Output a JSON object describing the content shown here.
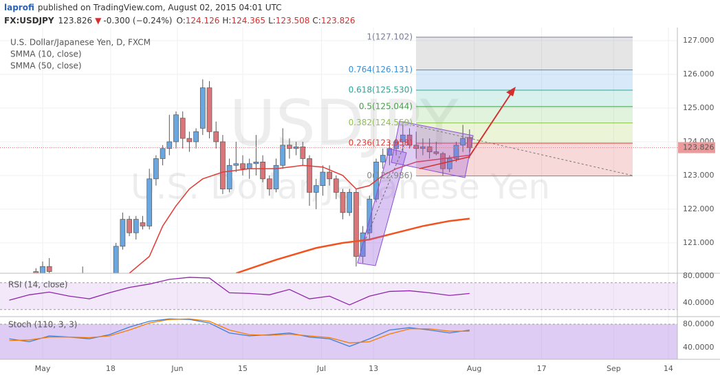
{
  "header": {
    "author": "laprofi",
    "published": "published on TradingView.com, August 02, 2015 04:01 UTC",
    "symbol": "FX:USDJPY",
    "price": "123.826",
    "arrow": "▼",
    "change": "-0.300 (−0.24%)",
    "ohlc": [
      {
        "label": "O:",
        "value": "124.126"
      },
      {
        "label": "H:",
        "value": "124.365"
      },
      {
        "label": "L:",
        "value": "123.508"
      },
      {
        "label": "C:",
        "value": "123.826"
      }
    ]
  },
  "chart_data": [
    {
      "type": "candlestick",
      "title": "U.S. Dollar/Japanese Yen, D, FXCM",
      "watermark": "USDJPY",
      "watermark_subtitle": "U.S. Dollar/Japanese Yen",
      "x": [
        4,
        5,
        6,
        11,
        16,
        17,
        18,
        19,
        20,
        21,
        22,
        23,
        24,
        25,
        26,
        27,
        28,
        29,
        30,
        31,
        32,
        33,
        34,
        35,
        36,
        37,
        38,
        39,
        40,
        41,
        42,
        43,
        44,
        45,
        46,
        47,
        48,
        49,
        50,
        51,
        52,
        53,
        54,
        55,
        56,
        57,
        58,
        59,
        60,
        61,
        62,
        63,
        64,
        65,
        66,
        67,
        68,
        69
      ],
      "open": [
        120.15,
        120.1,
        120.3,
        120.0,
        119.9,
        120.9,
        121.7,
        121.3,
        121.6,
        121.5,
        122.9,
        123.5,
        123.8,
        124.0,
        124.7,
        124.1,
        124.0,
        124.4,
        125.6,
        124.3,
        124.0,
        122.6,
        123.3,
        123.35,
        123.2,
        123.35,
        123.4,
        122.9,
        122.6,
        123.3,
        123.9,
        123.8,
        123.85,
        123.5,
        122.5,
        122.7,
        123.1,
        122.9,
        122.5,
        121.9,
        122.5,
        120.6,
        121.3,
        122.3,
        123.4,
        123.6,
        123.8,
        124.0,
        124.2,
        123.9,
        123.8,
        123.85,
        123.7,
        123.65,
        123.2,
        123.5,
        123.9,
        124.126
      ],
      "high": [
        120.25,
        120.45,
        120.55,
        120.3,
        121.0,
        121.9,
        121.8,
        121.8,
        121.8,
        123.2,
        123.6,
        123.9,
        124.8,
        124.9,
        124.9,
        124.3,
        124.4,
        125.85,
        125.8,
        124.6,
        124.2,
        123.5,
        124.0,
        123.6,
        123.5,
        124.2,
        123.6,
        123.0,
        123.5,
        124.4,
        124.1,
        124.0,
        124.0,
        123.6,
        122.9,
        123.3,
        123.3,
        123.0,
        122.6,
        122.6,
        122.6,
        121.5,
        122.4,
        123.5,
        123.8,
        124.0,
        124.1,
        124.5,
        124.4,
        124.3,
        124.1,
        124.1,
        124.0,
        123.7,
        123.6,
        124.0,
        124.5,
        124.365
      ],
      "low": [
        120.0,
        120.0,
        120.1,
        119.9,
        119.8,
        120.8,
        121.2,
        121.1,
        121.4,
        121.4,
        122.7,
        123.3,
        123.6,
        123.8,
        123.8,
        123.7,
        123.8,
        124.2,
        124.1,
        123.8,
        122.45,
        122.5,
        123.1,
        123.0,
        122.9,
        123.0,
        122.8,
        122.4,
        122.5,
        123.2,
        123.5,
        123.6,
        123.3,
        122.1,
        122.0,
        122.4,
        122.7,
        122.3,
        121.7,
        121.8,
        120.3,
        120.4,
        121.1,
        122.2,
        123.2,
        123.3,
        123.6,
        123.7,
        123.8,
        123.5,
        123.6,
        123.5,
        123.6,
        123.0,
        123.1,
        123.4,
        123.7,
        123.508
      ],
      "close": [
        120.1,
        120.3,
        120.15,
        120.1,
        120.9,
        121.7,
        121.3,
        121.7,
        121.5,
        122.9,
        123.5,
        123.8,
        124.0,
        124.8,
        124.1,
        124.0,
        124.3,
        125.6,
        124.3,
        124.0,
        122.6,
        123.3,
        123.35,
        123.2,
        123.35,
        123.4,
        122.9,
        122.6,
        123.3,
        123.9,
        123.8,
        123.85,
        123.5,
        122.5,
        122.7,
        123.1,
        122.9,
        122.5,
        121.9,
        122.5,
        120.6,
        121.3,
        122.3,
        123.4,
        123.6,
        123.8,
        124.0,
        124.2,
        123.9,
        123.8,
        123.85,
        123.7,
        123.65,
        123.2,
        123.5,
        123.9,
        124.1,
        123.826
      ],
      "up_color": "#6aa6e0",
      "down_color": "#d9767a",
      "series": [
        {
          "name": "SMMA (10, close)",
          "color": "#e53935",
          "x": [
            18,
            21,
            23,
            25,
            27,
            29,
            32,
            36,
            40,
            44,
            47,
            50,
            52,
            54,
            56,
            58,
            61,
            65,
            69
          ],
          "values": [
            120.1,
            120.6,
            121.5,
            122.1,
            122.6,
            122.9,
            123.1,
            123.2,
            123.2,
            123.3,
            123.25,
            123.0,
            122.6,
            122.7,
            123.0,
            123.2,
            123.4,
            123.5,
            123.6
          ]
        },
        {
          "name": "SMMA (50, close)",
          "color": "#f4511e",
          "x": [
            34,
            40,
            46,
            50,
            54,
            58,
            62,
            66,
            69
          ],
          "values": [
            120.1,
            120.5,
            120.85,
            121.0,
            121.1,
            121.3,
            121.5,
            121.65,
            121.72
          ]
        }
      ],
      "fib_levels": [
        {
          "value": 127.102,
          "label": "1(127.102)",
          "color": "#7a7a9a",
          "fill": "rgba(150,150,150,0.25)"
        },
        {
          "value": 126.131,
          "label": "0.764(126.131)",
          "color": "#3a8fd6",
          "fill": "rgba(100,170,230,0.25)"
        },
        {
          "value": 125.53,
          "label": "0.618(125.530)",
          "color": "#26a69a",
          "fill": "rgba(80,190,170,0.22)"
        },
        {
          "value": 125.044,
          "label": "0.5(125.044)",
          "color": "#43a047",
          "fill": "rgba(120,200,100,0.22)"
        },
        {
          "value": 124.559,
          "label": "0.382(124.559)",
          "color": "#8bc34a",
          "fill": "rgba(190,220,120,0.3)"
        },
        {
          "value": 123.958,
          "label": "0.236(123.958)",
          "color": "#e53935",
          "fill": "rgba(230,120,120,0.28)"
        },
        {
          "value": 122.986,
          "label": "0(122.986)",
          "color": "#888888"
        }
      ],
      "last_price": 123.826,
      "xlim": [
        -1.39,
        100.15
      ],
      "xticks": [
        {
          "value": 5,
          "label": "May"
        },
        {
          "value": 15.2,
          "label": "18"
        },
        {
          "value": 25.2,
          "label": "Jun"
        },
        {
          "value": 35,
          "label": "15"
        },
        {
          "value": 46.8,
          "label": "Jul"
        },
        {
          "value": 54.6,
          "label": "13"
        },
        {
          "value": 69.7,
          "label": "Aug"
        },
        {
          "value": 79.8,
          "label": "17"
        },
        {
          "value": 90.6,
          "label": "Sep"
        },
        {
          "value": 98.8,
          "label": "14"
        }
      ],
      "ylim": [
        120.1,
        127.388
      ],
      "yticks": [
        {
          "value": 121,
          "label": "121.000"
        },
        {
          "value": 122,
          "label": "122.000"
        },
        {
          "value": 123,
          "label": "123.000"
        },
        {
          "value": 124,
          "label": "124.000"
        },
        {
          "value": 125,
          "label": "125.000"
        },
        {
          "value": 126,
          "label": "126.000"
        },
        {
          "value": 127,
          "label": "127.000"
        }
      ],
      "grid": true
    },
    {
      "type": "line",
      "title": "RSI (14, close)",
      "band": [
        30,
        70
      ],
      "band_color": "rgba(200,150,230,0.22)",
      "series": [
        {
          "color": "#8e24aa",
          "x": [
            0,
            3,
            6,
            9,
            12,
            15,
            18,
            21,
            24,
            27,
            30,
            33,
            36,
            39,
            42,
            45,
            48,
            51,
            54,
            57,
            60,
            63,
            66,
            69
          ],
          "values": [
            44,
            52,
            56,
            50,
            46,
            55,
            63,
            68,
            75,
            78,
            77,
            55,
            54,
            52,
            60,
            46,
            50,
            37,
            50,
            57,
            58,
            55,
            51,
            54
          ]
        }
      ],
      "ylim": [
        19.5,
        84.1
      ],
      "yticks": [
        {
          "value": 40,
          "label": "40.0000"
        },
        {
          "value": 80,
          "label": "80.0000"
        }
      ]
    },
    {
      "type": "line",
      "title": "Stoch (110, 3, 3)",
      "band": [
        20,
        80
      ],
      "band_color": "rgba(170,120,230,0.38)",
      "series": [
        {
          "color": "#3f7fd6",
          "x": [
            0,
            3,
            6,
            9,
            12,
            15,
            18,
            21,
            24,
            27,
            30,
            33,
            36,
            39,
            42,
            45,
            48,
            51,
            54,
            57,
            60,
            63,
            66,
            69
          ],
          "values": [
            55,
            50,
            60,
            58,
            55,
            62,
            75,
            85,
            89,
            88,
            82,
            65,
            60,
            62,
            65,
            58,
            55,
            42,
            55,
            70,
            74,
            70,
            65,
            70
          ]
        },
        {
          "color": "#f57c00",
          "x": [
            0,
            3,
            6,
            9,
            12,
            15,
            18,
            21,
            24,
            27,
            30,
            33,
            36,
            39,
            42,
            45,
            48,
            51,
            54,
            57,
            60,
            63,
            66,
            69
          ],
          "values": [
            52,
            53,
            58,
            58,
            57,
            60,
            70,
            82,
            88,
            89,
            85,
            70,
            62,
            61,
            63,
            60,
            57,
            48,
            50,
            63,
            72,
            72,
            68,
            68
          ]
        }
      ],
      "ylim": [
        20,
        92.9
      ],
      "yticks": [
        {
          "value": 40,
          "label": "40.0000"
        },
        {
          "value": 80,
          "label": "80.0000"
        }
      ]
    }
  ]
}
